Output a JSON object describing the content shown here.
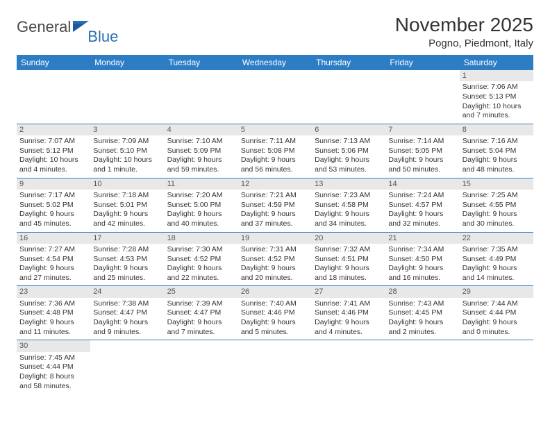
{
  "logo": {
    "text1": "General",
    "text2": "Blue"
  },
  "title": "November 2025",
  "location": "Pogno, Piedmont, Italy",
  "headerColor": "#2d7dc5",
  "dayHeaders": [
    "Sunday",
    "Monday",
    "Tuesday",
    "Wednesday",
    "Thursday",
    "Friday",
    "Saturday"
  ],
  "weeks": [
    [
      {
        "n": "",
        "t": ""
      },
      {
        "n": "",
        "t": ""
      },
      {
        "n": "",
        "t": ""
      },
      {
        "n": "",
        "t": ""
      },
      {
        "n": "",
        "t": ""
      },
      {
        "n": "",
        "t": ""
      },
      {
        "n": "1",
        "t": "Sunrise: 7:06 AM\nSunset: 5:13 PM\nDaylight: 10 hours and 7 minutes."
      }
    ],
    [
      {
        "n": "2",
        "t": "Sunrise: 7:07 AM\nSunset: 5:12 PM\nDaylight: 10 hours and 4 minutes."
      },
      {
        "n": "3",
        "t": "Sunrise: 7:09 AM\nSunset: 5:10 PM\nDaylight: 10 hours and 1 minute."
      },
      {
        "n": "4",
        "t": "Sunrise: 7:10 AM\nSunset: 5:09 PM\nDaylight: 9 hours and 59 minutes."
      },
      {
        "n": "5",
        "t": "Sunrise: 7:11 AM\nSunset: 5:08 PM\nDaylight: 9 hours and 56 minutes."
      },
      {
        "n": "6",
        "t": "Sunrise: 7:13 AM\nSunset: 5:06 PM\nDaylight: 9 hours and 53 minutes."
      },
      {
        "n": "7",
        "t": "Sunrise: 7:14 AM\nSunset: 5:05 PM\nDaylight: 9 hours and 50 minutes."
      },
      {
        "n": "8",
        "t": "Sunrise: 7:16 AM\nSunset: 5:04 PM\nDaylight: 9 hours and 48 minutes."
      }
    ],
    [
      {
        "n": "9",
        "t": "Sunrise: 7:17 AM\nSunset: 5:02 PM\nDaylight: 9 hours and 45 minutes."
      },
      {
        "n": "10",
        "t": "Sunrise: 7:18 AM\nSunset: 5:01 PM\nDaylight: 9 hours and 42 minutes."
      },
      {
        "n": "11",
        "t": "Sunrise: 7:20 AM\nSunset: 5:00 PM\nDaylight: 9 hours and 40 minutes."
      },
      {
        "n": "12",
        "t": "Sunrise: 7:21 AM\nSunset: 4:59 PM\nDaylight: 9 hours and 37 minutes."
      },
      {
        "n": "13",
        "t": "Sunrise: 7:23 AM\nSunset: 4:58 PM\nDaylight: 9 hours and 34 minutes."
      },
      {
        "n": "14",
        "t": "Sunrise: 7:24 AM\nSunset: 4:57 PM\nDaylight: 9 hours and 32 minutes."
      },
      {
        "n": "15",
        "t": "Sunrise: 7:25 AM\nSunset: 4:55 PM\nDaylight: 9 hours and 30 minutes."
      }
    ],
    [
      {
        "n": "16",
        "t": "Sunrise: 7:27 AM\nSunset: 4:54 PM\nDaylight: 9 hours and 27 minutes."
      },
      {
        "n": "17",
        "t": "Sunrise: 7:28 AM\nSunset: 4:53 PM\nDaylight: 9 hours and 25 minutes."
      },
      {
        "n": "18",
        "t": "Sunrise: 7:30 AM\nSunset: 4:52 PM\nDaylight: 9 hours and 22 minutes."
      },
      {
        "n": "19",
        "t": "Sunrise: 7:31 AM\nSunset: 4:52 PM\nDaylight: 9 hours and 20 minutes."
      },
      {
        "n": "20",
        "t": "Sunrise: 7:32 AM\nSunset: 4:51 PM\nDaylight: 9 hours and 18 minutes."
      },
      {
        "n": "21",
        "t": "Sunrise: 7:34 AM\nSunset: 4:50 PM\nDaylight: 9 hours and 16 minutes."
      },
      {
        "n": "22",
        "t": "Sunrise: 7:35 AM\nSunset: 4:49 PM\nDaylight: 9 hours and 14 minutes."
      }
    ],
    [
      {
        "n": "23",
        "t": "Sunrise: 7:36 AM\nSunset: 4:48 PM\nDaylight: 9 hours and 11 minutes."
      },
      {
        "n": "24",
        "t": "Sunrise: 7:38 AM\nSunset: 4:47 PM\nDaylight: 9 hours and 9 minutes."
      },
      {
        "n": "25",
        "t": "Sunrise: 7:39 AM\nSunset: 4:47 PM\nDaylight: 9 hours and 7 minutes."
      },
      {
        "n": "26",
        "t": "Sunrise: 7:40 AM\nSunset: 4:46 PM\nDaylight: 9 hours and 5 minutes."
      },
      {
        "n": "27",
        "t": "Sunrise: 7:41 AM\nSunset: 4:46 PM\nDaylight: 9 hours and 4 minutes."
      },
      {
        "n": "28",
        "t": "Sunrise: 7:43 AM\nSunset: 4:45 PM\nDaylight: 9 hours and 2 minutes."
      },
      {
        "n": "29",
        "t": "Sunrise: 7:44 AM\nSunset: 4:44 PM\nDaylight: 9 hours and 0 minutes."
      }
    ],
    [
      {
        "n": "30",
        "t": "Sunrise: 7:45 AM\nSunset: 4:44 PM\nDaylight: 8 hours and 58 minutes."
      },
      {
        "n": "",
        "t": ""
      },
      {
        "n": "",
        "t": ""
      },
      {
        "n": "",
        "t": ""
      },
      {
        "n": "",
        "t": ""
      },
      {
        "n": "",
        "t": ""
      },
      {
        "n": "",
        "t": ""
      }
    ]
  ]
}
